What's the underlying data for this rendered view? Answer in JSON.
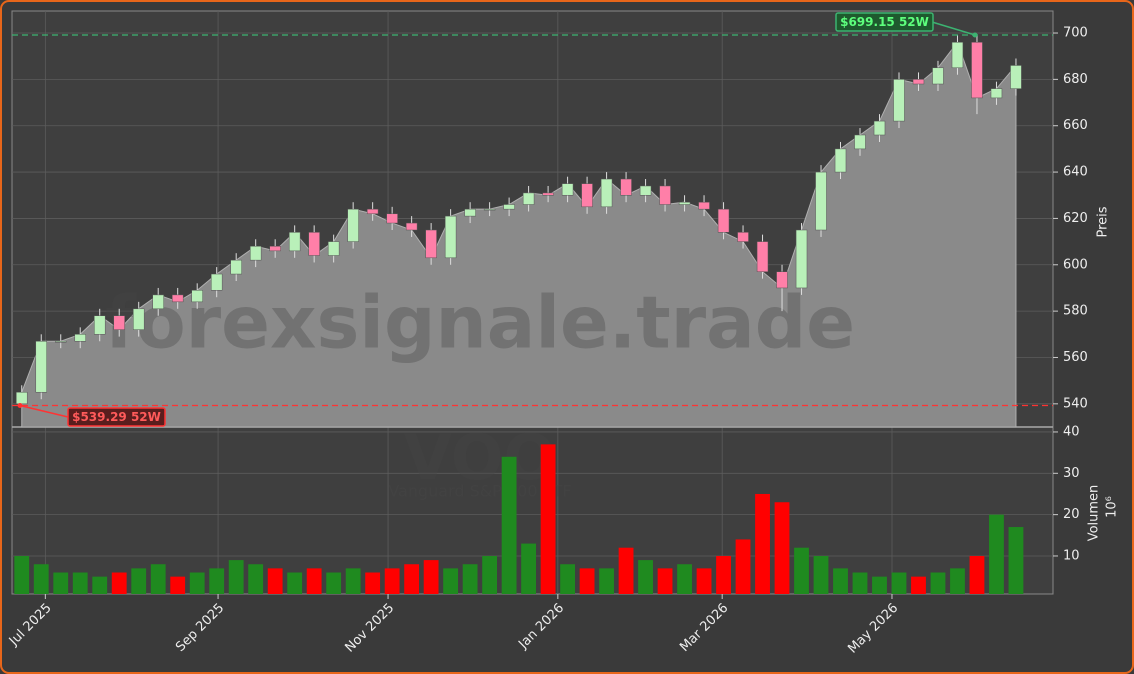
{
  "chart_data": [
    {
      "type": "candlestick",
      "ylabel": "Preis",
      "categories": [
        null,
        null,
        null,
        null,
        null,
        null,
        null,
        null,
        null,
        null,
        null,
        null,
        null,
        null,
        null,
        null,
        null,
        null,
        null,
        null,
        null,
        null,
        null,
        null,
        null,
        null,
        null,
        null,
        null,
        null,
        null,
        null,
        null,
        null,
        null,
        null,
        null,
        null,
        null,
        null,
        null,
        null,
        null,
        null,
        null,
        null,
        null,
        null,
        null,
        null,
        null,
        null
      ],
      "open": [
        540,
        545,
        567,
        567,
        570,
        578,
        572,
        581,
        587,
        584,
        589,
        596,
        602,
        608,
        606,
        614,
        604,
        610,
        624,
        622,
        618,
        615,
        603,
        621,
        624,
        624,
        626,
        631,
        630,
        635,
        625,
        637,
        630,
        634,
        626,
        627,
        624,
        614,
        610,
        597,
        590,
        615,
        640,
        650,
        656,
        662,
        680,
        678,
        685,
        696,
        672,
        676
      ],
      "high": [
        548,
        570,
        570,
        573,
        581,
        581,
        584,
        590,
        590,
        592,
        599,
        605,
        611,
        611,
        617,
        617,
        613,
        627,
        627,
        625,
        621,
        618,
        624,
        627,
        627,
        629,
        634,
        634,
        638,
        638,
        640,
        640,
        637,
        637,
        630,
        630,
        627,
        617,
        613,
        600,
        618,
        643,
        653,
        659,
        665,
        683,
        683,
        688,
        699,
        699,
        679,
        689
      ],
      "low": [
        539,
        542,
        564,
        564,
        567,
        569,
        569,
        578,
        581,
        581,
        586,
        593,
        599,
        603,
        603,
        601,
        601,
        607,
        619,
        615,
        612,
        600,
        600,
        618,
        621,
        621,
        623,
        627,
        627,
        622,
        622,
        627,
        627,
        623,
        623,
        621,
        611,
        607,
        594,
        580,
        587,
        612,
        637,
        647,
        653,
        659,
        675,
        675,
        682,
        665,
        669,
        673
      ],
      "close": [
        545,
        567,
        567,
        570,
        578,
        572,
        581,
        587,
        584,
        589,
        596,
        602,
        608,
        606,
        614,
        604,
        610,
        624,
        622,
        618,
        615,
        603,
        621,
        624,
        624,
        626,
        631,
        630,
        635,
        625,
        637,
        630,
        634,
        626,
        627,
        624,
        614,
        610,
        597,
        590,
        615,
        640,
        650,
        656,
        662,
        680,
        678,
        685,
        696,
        672,
        676,
        686
      ],
      "up_color": "#b9f0b9",
      "down_color": "#ff7fa8",
      "area_color": "#8a8a8a",
      "xlim": [
        -0.5,
        52.9
      ],
      "ylim": [
        530,
        709.5
      ],
      "yticks": [
        540,
        560,
        580,
        600,
        620,
        640,
        660,
        680,
        700
      ],
      "grid": true,
      "annotations": [
        {
          "label": "$699.15 52W",
          "value": 699.15,
          "color": "#3cb371",
          "text_color": "#5dff7d",
          "box": "#1e5a2e"
        },
        {
          "label": "$539.29 52W",
          "value": 539.29,
          "color": "#ff3333",
          "text_color": "#ff5a5a",
          "box": "#5a1e1e"
        }
      ]
    },
    {
      "type": "bar",
      "ylabel": "Volumen",
      "unit": "10⁶",
      "values": [
        10,
        8,
        6,
        6,
        5,
        6,
        7,
        8,
        5,
        6,
        7,
        9,
        8,
        7,
        6,
        7,
        6,
        7,
        6,
        7,
        8,
        9,
        7,
        8,
        10,
        34,
        13,
        37,
        8,
        7,
        7,
        12,
        9,
        7,
        8,
        7,
        10,
        14,
        25,
        23,
        12,
        10,
        7,
        6,
        5,
        6,
        5,
        6,
        7,
        10,
        20,
        17
      ],
      "up_color": "#1f8a1f",
      "down_color": "#ff0000",
      "xlim": [
        -0.5,
        52.9
      ],
      "ylim": [
        0.8,
        41.2
      ],
      "yticks": [
        10,
        20,
        30,
        40
      ],
      "xticks": [
        {
          "value": 1.21,
          "label": "Jul 2025"
        },
        {
          "value": 10.07,
          "label": "Sep 2025"
        },
        {
          "value": 18.79,
          "label": "Nov 2025"
        },
        {
          "value": 27.5,
          "label": "Jan 2026"
        },
        {
          "value": 35.93,
          "label": "Mar 2026"
        },
        {
          "value": 44.64,
          "label": "May 2026"
        }
      ]
    }
  ],
  "watermark": {
    "site": "forexsignale.trade",
    "symbol": "VOO",
    "name": "Vanguard S&P 500 ETF"
  }
}
